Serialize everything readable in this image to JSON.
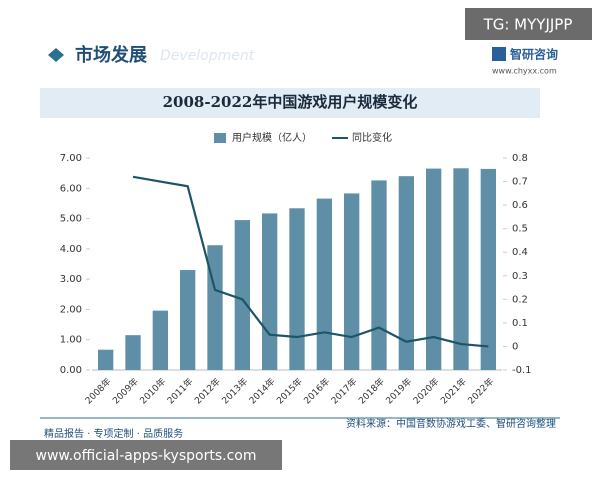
{
  "header": {
    "tag": "TG: MYYJJPP",
    "section": "市场发展",
    "section_en": "Development",
    "brand": "智研咨询",
    "url": "www.chyxx.com"
  },
  "chart_data": {
    "type": "bar",
    "title": "2008-2022年中国游戏用户规模变化",
    "categories": [
      "2008年",
      "2009年",
      "2010年",
      "2011年",
      "2012年",
      "2013年",
      "2014年",
      "2015年",
      "2016年",
      "2017年",
      "2018年",
      "2019年",
      "2020年",
      "2021年",
      "2022年"
    ],
    "series": [
      {
        "name": "用户规模（亿人）",
        "color": "#5e8fa6",
        "values": [
          0.67,
          1.15,
          1.96,
          3.3,
          4.12,
          4.95,
          5.17,
          5.34,
          5.66,
          5.83,
          6.26,
          6.4,
          6.65,
          6.66,
          6.64
        ]
      },
      {
        "name": "同比变化",
        "color": "#1d5568",
        "type": "line",
        "axis": "y2",
        "values": [
          null,
          0.72,
          0.7,
          0.68,
          0.24,
          0.2,
          0.05,
          0.04,
          0.06,
          0.04,
          0.08,
          0.02,
          0.04,
          0.01,
          0.0
        ]
      }
    ],
    "ylim": [
      0,
      7
    ],
    "yticks": [
      {
        "value": 0,
        "label": "0.00"
      },
      {
        "value": 1,
        "label": "1.00"
      },
      {
        "value": 2,
        "label": "2.00"
      },
      {
        "value": 3,
        "label": "3.00"
      },
      {
        "value": 4,
        "label": "4.00"
      },
      {
        "value": 5,
        "label": "5.00"
      },
      {
        "value": 6,
        "label": "6.00"
      },
      {
        "value": 7,
        "label": "7.00"
      }
    ],
    "y2lim": [
      -0.1,
      0.8
    ],
    "y2ticks": [
      -0.1,
      0,
      0.1,
      0.2,
      0.3,
      0.4,
      0.5,
      0.6,
      0.7,
      0.8
    ],
    "source": "资料来源：中国音数协游戏工委、智研咨询整理"
  },
  "footer": {
    "slogan": "精品报告 · 专项定制 · 品质服务",
    "site": "www.official-apps-kysports.com"
  }
}
